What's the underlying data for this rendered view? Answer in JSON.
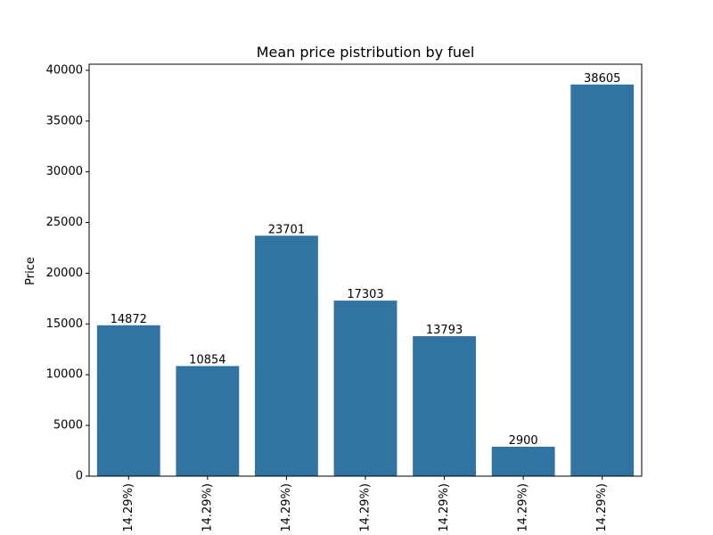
{
  "colors": {
    "bar": "#3274a1",
    "axis": "#000000"
  },
  "chart_data": {
    "type": "bar",
    "title": "Mean price pistribution by fuel",
    "xlabel": "",
    "ylabel": "Price",
    "categories": [
      "14.29%)",
      "14.29%)",
      "14.29%)",
      "14.29%)",
      "14.29%)",
      "14.29%)",
      "14.29%)"
    ],
    "values": [
      14872,
      10854,
      23701,
      17303,
      13793,
      2900,
      38605
    ],
    "data_labels": [
      "14872",
      "10854",
      "23701",
      "17303",
      "13793",
      "2900",
      "38605"
    ],
    "ylim": [
      0,
      40605
    ],
    "yticks": [
      0,
      5000,
      10000,
      15000,
      20000,
      25000,
      30000,
      35000,
      40000
    ],
    "grid": false,
    "legend": "none"
  }
}
